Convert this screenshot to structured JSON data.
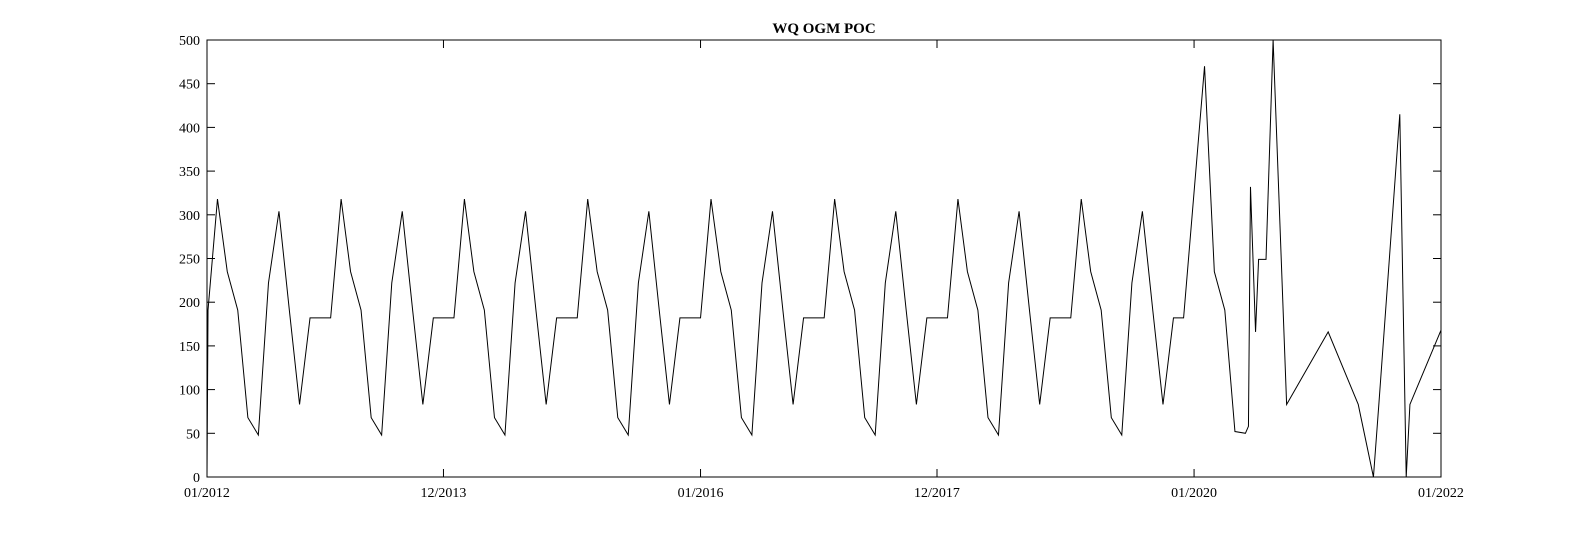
{
  "chart_data": {
    "type": "line",
    "title": "WQ OGM POC",
    "xlabel": "",
    "ylabel": "",
    "x_range": [
      "2012-01-01",
      "2022-01-01"
    ],
    "ylim": [
      0,
      500
    ],
    "yticks": [
      0,
      50,
      100,
      150,
      200,
      250,
      300,
      350,
      400,
      450,
      500
    ],
    "xticks": [
      {
        "date": "2012-01-01",
        "label": "01/2012"
      },
      {
        "date": "2013-12-01",
        "label": "12/2013"
      },
      {
        "date": "2016-01-01",
        "label": "01/2016"
      },
      {
        "date": "2017-12-01",
        "label": "12/2017"
      },
      {
        "date": "2020-01-01",
        "label": "01/2020"
      },
      {
        "date": "2022-01-01",
        "label": "01/2022"
      }
    ],
    "grid": false,
    "line_color": "#000000",
    "series": [
      {
        "points": [
          [
            "2012-01-01",
            0
          ],
          [
            "2012-01-04",
            191
          ],
          [
            "2012-02-01",
            318
          ],
          [
            "2012-03-01",
            235
          ],
          [
            "2012-04-01",
            191
          ],
          [
            "2012-05-01",
            68
          ],
          [
            "2012-06-01",
            48
          ],
          [
            "2012-07-01",
            222
          ],
          [
            "2012-08-01",
            304
          ],
          [
            "2012-09-01",
            190
          ],
          [
            "2012-10-01",
            83
          ],
          [
            "2012-11-01",
            182
          ],
          [
            "2012-12-01",
            182
          ],
          [
            "2013-01-01",
            182
          ],
          [
            "2013-02-01",
            318
          ],
          [
            "2013-03-01",
            235
          ],
          [
            "2013-04-01",
            191
          ],
          [
            "2013-05-01",
            68
          ],
          [
            "2013-06-01",
            48
          ],
          [
            "2013-07-01",
            222
          ],
          [
            "2013-08-01",
            304
          ],
          [
            "2013-09-01",
            190
          ],
          [
            "2013-10-01",
            83
          ],
          [
            "2013-11-01",
            182
          ],
          [
            "2013-12-01",
            182
          ],
          [
            "2014-01-01",
            182
          ],
          [
            "2014-02-01",
            318
          ],
          [
            "2014-03-01",
            235
          ],
          [
            "2014-04-01",
            191
          ],
          [
            "2014-05-01",
            68
          ],
          [
            "2014-06-01",
            48
          ],
          [
            "2014-07-01",
            222
          ],
          [
            "2014-08-01",
            304
          ],
          [
            "2014-09-01",
            190
          ],
          [
            "2014-10-01",
            83
          ],
          [
            "2014-11-01",
            182
          ],
          [
            "2014-12-01",
            182
          ],
          [
            "2015-01-01",
            182
          ],
          [
            "2015-02-01",
            318
          ],
          [
            "2015-03-01",
            235
          ],
          [
            "2015-04-01",
            191
          ],
          [
            "2015-05-01",
            68
          ],
          [
            "2015-06-01",
            48
          ],
          [
            "2015-07-01",
            222
          ],
          [
            "2015-08-01",
            304
          ],
          [
            "2015-09-01",
            190
          ],
          [
            "2015-10-01",
            83
          ],
          [
            "2015-11-01",
            182
          ],
          [
            "2015-12-01",
            182
          ],
          [
            "2016-01-01",
            182
          ],
          [
            "2016-02-01",
            318
          ],
          [
            "2016-03-01",
            235
          ],
          [
            "2016-04-01",
            191
          ],
          [
            "2016-05-01",
            68
          ],
          [
            "2016-06-01",
            48
          ],
          [
            "2016-07-01",
            222
          ],
          [
            "2016-08-01",
            304
          ],
          [
            "2016-09-01",
            190
          ],
          [
            "2016-10-01",
            83
          ],
          [
            "2016-11-01",
            182
          ],
          [
            "2016-12-01",
            182
          ],
          [
            "2017-01-01",
            182
          ],
          [
            "2017-02-01",
            318
          ],
          [
            "2017-03-01",
            235
          ],
          [
            "2017-04-01",
            191
          ],
          [
            "2017-05-01",
            68
          ],
          [
            "2017-06-01",
            48
          ],
          [
            "2017-07-01",
            222
          ],
          [
            "2017-08-01",
            304
          ],
          [
            "2017-09-01",
            190
          ],
          [
            "2017-10-01",
            83
          ],
          [
            "2017-11-01",
            182
          ],
          [
            "2017-12-01",
            182
          ],
          [
            "2018-01-01",
            182
          ],
          [
            "2018-02-01",
            318
          ],
          [
            "2018-03-01",
            235
          ],
          [
            "2018-04-01",
            191
          ],
          [
            "2018-05-01",
            68
          ],
          [
            "2018-06-01",
            48
          ],
          [
            "2018-07-01",
            222
          ],
          [
            "2018-08-01",
            304
          ],
          [
            "2018-09-01",
            190
          ],
          [
            "2018-10-01",
            83
          ],
          [
            "2018-11-01",
            182
          ],
          [
            "2018-12-01",
            182
          ],
          [
            "2019-01-01",
            182
          ],
          [
            "2019-02-01",
            318
          ],
          [
            "2019-03-01",
            235
          ],
          [
            "2019-04-01",
            191
          ],
          [
            "2019-05-01",
            68
          ],
          [
            "2019-06-01",
            48
          ],
          [
            "2019-07-01",
            222
          ],
          [
            "2019-08-01",
            304
          ],
          [
            "2019-09-01",
            190
          ],
          [
            "2019-10-01",
            83
          ],
          [
            "2019-11-01",
            182
          ],
          [
            "2019-12-01",
            182
          ],
          [
            "2020-02-01",
            470
          ],
          [
            "2020-03-01",
            235
          ],
          [
            "2020-04-01",
            191
          ],
          [
            "2020-05-01",
            52
          ],
          [
            "2020-06-01",
            50
          ],
          [
            "2020-06-10",
            58
          ],
          [
            "2020-06-16",
            332
          ],
          [
            "2020-07-01",
            166
          ],
          [
            "2020-07-10",
            249
          ],
          [
            "2020-08-01",
            249
          ],
          [
            "2020-08-22",
            500
          ],
          [
            "2020-10-01",
            83
          ],
          [
            "2021-02-01",
            166
          ],
          [
            "2021-05-01",
            83
          ],
          [
            "2021-06-15",
            0
          ],
          [
            "2021-07-01",
            83
          ],
          [
            "2021-09-01",
            415
          ],
          [
            "2021-09-20",
            0
          ],
          [
            "2021-10-01",
            83
          ],
          [
            "2022-01-01",
            168
          ]
        ]
      }
    ]
  }
}
